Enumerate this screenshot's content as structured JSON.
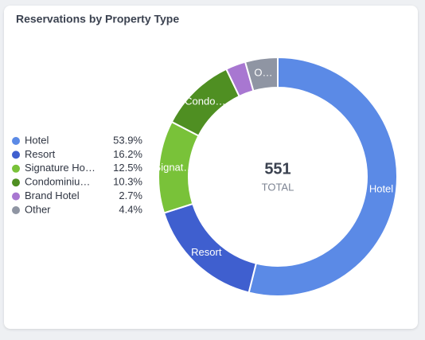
{
  "chart_data": {
    "type": "donut",
    "title": "Reservations by Property Type",
    "categories": [
      "Hotel",
      "Resort",
      "Signature Ho…",
      "Condominiu…",
      "Brand Hotel",
      "Other"
    ],
    "values": [
      53.9,
      16.2,
      12.5,
      10.3,
      2.7,
      4.4
    ],
    "value_labels": [
      "53.9%",
      "16.2%",
      "12.5%",
      "10.3%",
      "2.7%",
      "4.4%"
    ],
    "slice_labels": [
      "Hotel",
      "Resort",
      "Signat…",
      "Condo…",
      null,
      "O…"
    ],
    "colors": [
      "#5b8ae6",
      "#3f5fcf",
      "#79c239",
      "#4f8f22",
      "#a877d1",
      "#8f95a3"
    ],
    "total": 551,
    "total_label": "TOTAL"
  }
}
